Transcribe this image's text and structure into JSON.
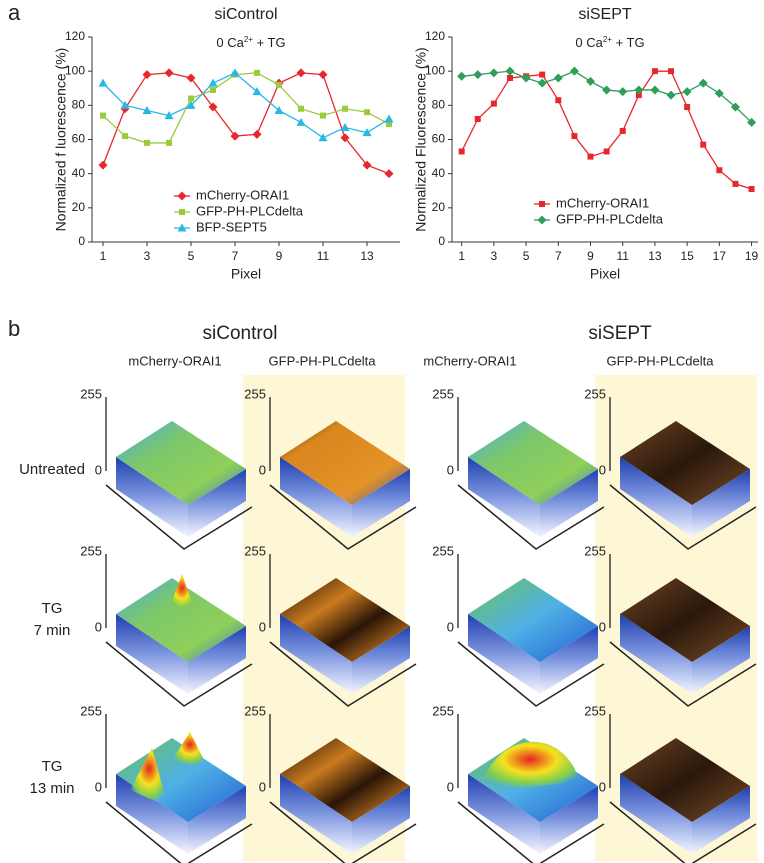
{
  "panel_a_label": "a",
  "chart_data": [
    {
      "type": "line",
      "title": "siControl",
      "annotation": [
        "0 Ca",
        "2+",
        " + TG"
      ],
      "xlabel": "Pixel",
      "ylabel": "Normalized f luorescence (%)",
      "x": [
        1,
        2,
        3,
        4,
        5,
        6,
        7,
        8,
        9,
        10,
        11,
        12,
        13,
        14
      ],
      "xlim": [
        0.5,
        14.5
      ],
      "xticks": [
        1,
        3,
        5,
        7,
        9,
        11,
        13
      ],
      "ylim": [
        0,
        120
      ],
      "yticks": [
        0,
        20,
        40,
        60,
        80,
        100,
        120
      ],
      "legend": "lower center",
      "series": [
        {
          "name": "mCherry-ORAI1",
          "color": "#e8262d",
          "marker": "diamond",
          "values": [
            45,
            78,
            98,
            99,
            96,
            79,
            62,
            63,
            93,
            99,
            98,
            61,
            45,
            40
          ]
        },
        {
          "name": "GFP-PH-PLCdelta",
          "color": "#9acb3c",
          "marker": "square",
          "values": [
            74,
            62,
            58,
            58,
            84,
            89,
            98,
            99,
            92,
            78,
            74,
            78,
            76,
            69
          ]
        },
        {
          "name": "BFP-SEPT5",
          "color": "#27b8e6",
          "marker": "triangle",
          "values": [
            93,
            80,
            77,
            74,
            80,
            93,
            99,
            88,
            77,
            70,
            61,
            67,
            64,
            72
          ]
        }
      ]
    },
    {
      "type": "line",
      "title": "siSEPT",
      "annotation": [
        "0 Ca",
        "2+",
        " + TG"
      ],
      "xlabel": "Pixel",
      "ylabel": "Normalized Fluorescence (%)",
      "x": [
        1,
        2,
        3,
        4,
        5,
        6,
        7,
        8,
        9,
        10,
        11,
        12,
        13,
        14,
        15,
        16,
        17,
        18,
        19
      ],
      "xlim": [
        0.4,
        19.4
      ],
      "xticks": [
        1,
        3,
        5,
        7,
        9,
        11,
        13,
        15,
        17,
        19
      ],
      "ylim": [
        0,
        120
      ],
      "yticks": [
        0,
        20,
        40,
        60,
        80,
        100,
        120
      ],
      "legend": "lower left",
      "series": [
        {
          "name": "mCherry-ORAI1",
          "color": "#e8262d",
          "marker": "square",
          "values": [
            53,
            72,
            81,
            96,
            97,
            98,
            83,
            62,
            50,
            53,
            65,
            86,
            100,
            100,
            79,
            57,
            42,
            34,
            31
          ]
        },
        {
          "name": "GFP-PH-PLCdelta",
          "color": "#2e9e58",
          "marker": "diamond",
          "values": [
            97,
            98,
            99,
            100,
            96,
            93,
            96,
            100,
            94,
            89,
            88,
            89,
            89,
            86,
            88,
            93,
            87,
            79,
            70
          ]
        }
      ]
    }
  ],
  "panel_b": {
    "label": "b",
    "groups": [
      {
        "title": "siControl",
        "columns": [
          "mCherry-ORAI1",
          "GFP-PH-PLCdelta"
        ]
      },
      {
        "title": "siSEPT",
        "columns": [
          "mCherry-ORAI1",
          "GFP-PH-PLCdelta"
        ]
      }
    ],
    "rows": [
      [
        "Untreated"
      ],
      [
        "TG",
        "7 min"
      ],
      [
        "TG",
        "13 min"
      ]
    ],
    "z_axis_labels": [
      "255",
      "0"
    ]
  }
}
